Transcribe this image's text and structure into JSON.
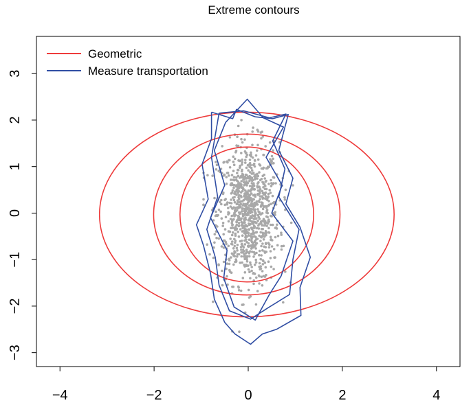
{
  "chart_data": {
    "type": "scatter",
    "title": "Extreme contours",
    "xlabel": "",
    "ylabel": "",
    "xlim": [
      -4.5,
      4.5
    ],
    "ylim": [
      -3.3,
      3.8
    ],
    "x_ticks": [
      -4,
      -2,
      0,
      2,
      4
    ],
    "x_tick_labels": [
      "−4",
      "−2",
      "0",
      "2",
      "4"
    ],
    "y_ticks": [
      -3,
      -2,
      -1,
      0,
      1,
      2,
      3
    ],
    "y_tick_labels": [
      "−3",
      "−2",
      "−1",
      "0",
      "1",
      "2",
      "3"
    ],
    "grid": false,
    "legend": {
      "position": "top-left",
      "entries": [
        {
          "label": "Geometric",
          "color": "#ee3b3b"
        },
        {
          "label": "Measure transportation",
          "color": "#2f4da3"
        }
      ]
    },
    "colors": {
      "geometric": "#ee3b3b",
      "transport": "#2f4da3",
      "points": "#a8a8a8"
    },
    "scatter": {
      "approx_count": 1000,
      "x_center": 0.0,
      "x_sd": 0.33,
      "y_center": 0.0,
      "y_sd": 0.75
    },
    "series": [
      {
        "name": "Geometric",
        "kind": "closed_curve",
        "contours": [
          {
            "cx": -0.03,
            "cy": -0.03,
            "a": 3.13,
            "b": 2.2
          },
          {
            "cx": -0.03,
            "cy": -0.03,
            "a": 1.98,
            "b": 1.73
          },
          {
            "cx": -0.03,
            "cy": -0.03,
            "a": 1.42,
            "b": 1.45
          }
        ]
      },
      {
        "name": "Measure transportation",
        "kind": "polygons",
        "contours": [
          [
            [
              -0.78,
              2.17
            ],
            [
              -0.33,
              2.03
            ],
            [
              -0.25,
              2.23
            ],
            [
              0.15,
              2.07
            ],
            [
              0.52,
              2.03
            ],
            [
              0.85,
              2.12
            ],
            [
              0.65,
              1.35
            ],
            [
              0.95,
              0.75
            ],
            [
              0.8,
              0.2
            ],
            [
              1.1,
              -0.3
            ],
            [
              1.32,
              -0.95
            ],
            [
              1.1,
              -1.6
            ],
            [
              1.12,
              -2.2
            ],
            [
              0.6,
              -2.5
            ],
            [
              0.3,
              -2.6
            ],
            [
              0.05,
              -2.82
            ],
            [
              -0.28,
              -2.6
            ],
            [
              -0.5,
              -2.35
            ],
            [
              -0.72,
              -1.85
            ],
            [
              -0.8,
              -1.3
            ],
            [
              -0.95,
              -0.7
            ],
            [
              -1.1,
              -0.25
            ],
            [
              -0.85,
              0.3
            ],
            [
              -0.98,
              1.05
            ],
            [
              -0.78,
              1.6
            ],
            [
              -0.78,
              2.17
            ]
          ],
          [
            [
              -0.62,
              2.15
            ],
            [
              -0.1,
              2.2
            ],
            [
              0.45,
              2.05
            ],
            [
              0.8,
              2.13
            ],
            [
              0.52,
              1.55
            ],
            [
              0.78,
              0.95
            ],
            [
              0.65,
              0.35
            ],
            [
              1.08,
              -0.35
            ],
            [
              0.95,
              -1.0
            ],
            [
              0.88,
              -1.75
            ],
            [
              0.4,
              -2.05
            ],
            [
              0.05,
              -2.28
            ],
            [
              -0.4,
              -2.1
            ],
            [
              -0.62,
              -1.55
            ],
            [
              -0.7,
              -0.95
            ],
            [
              -0.88,
              -0.35
            ],
            [
              -0.65,
              0.35
            ],
            [
              -0.78,
              1.2
            ],
            [
              -0.62,
              2.15
            ]
          ],
          [
            [
              -0.48,
              1.95
            ],
            [
              -0.02,
              2.45
            ],
            [
              0.32,
              2.05
            ],
            [
              0.75,
              1.85
            ],
            [
              0.38,
              1.2
            ],
            [
              0.72,
              0.6
            ],
            [
              0.5,
              0.0
            ],
            [
              0.95,
              -0.6
            ],
            [
              0.7,
              -1.35
            ],
            [
              0.45,
              -1.75
            ],
            [
              0.15,
              -2.3
            ],
            [
              -0.3,
              -2.02
            ],
            [
              -0.52,
              -1.4
            ],
            [
              -0.45,
              -0.8
            ],
            [
              -0.8,
              -0.1
            ],
            [
              -0.5,
              0.6
            ],
            [
              -0.72,
              1.35
            ],
            [
              -0.48,
              1.95
            ]
          ]
        ]
      }
    ]
  }
}
